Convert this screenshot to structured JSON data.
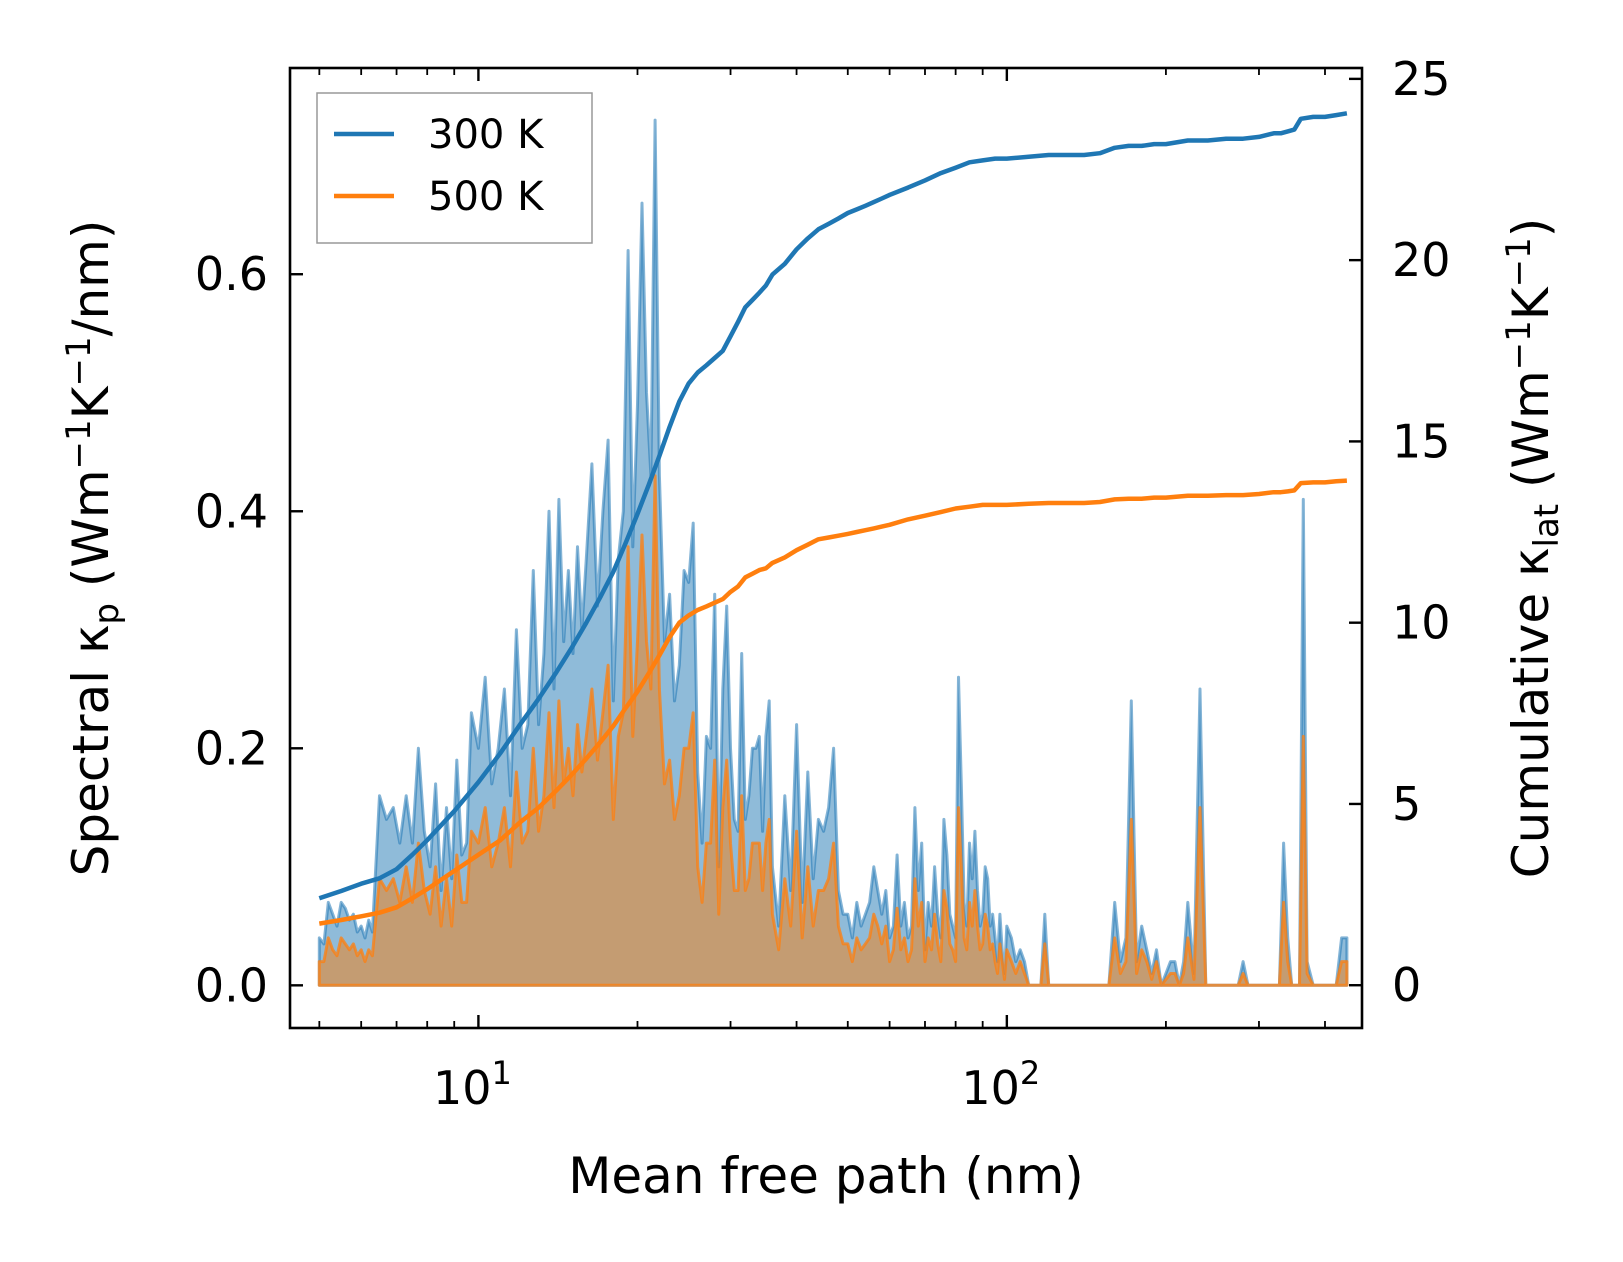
{
  "chart_data": {
    "type": "line",
    "xlabel": "Mean free path (nm)",
    "xscale": "log",
    "xlim": [
      4.4,
      470
    ],
    "x_ticks": [
      {
        "value": 10,
        "base": "10",
        "exp": "1"
      },
      {
        "value": 100,
        "base": "10",
        "exp": "2"
      }
    ],
    "ylabel_left": {
      "text": "Spectral κ",
      "sub": "p",
      "units_open": " (Wm",
      "sup1": "−1",
      "mid": "K",
      "sup2": "−1",
      "units_close": "/nm)"
    },
    "ylabel_right": {
      "text": "Cumulative κ",
      "sub": "lat",
      "units_open": " (Wm",
      "sup1": "−1",
      "mid": "K",
      "sup2": "−1",
      "units_close": ")"
    },
    "ylim_left": [
      -0.036,
      0.774
    ],
    "ylim_right": [
      -1.18,
      25.3
    ],
    "left_ticks": [
      "0.0",
      "0.2",
      "0.4",
      "0.6"
    ],
    "right_ticks": [
      "0",
      "5",
      "10",
      "15",
      "20",
      "25"
    ],
    "legend_position": "upper-left",
    "colors": {
      "300K": "#1f77b4",
      "500K": "#ff7f0e",
      "fill500": "#c49c72"
    },
    "spectral_x": [
      5,
      5.1,
      5.2,
      5.3,
      5.4,
      5.5,
      5.6,
      5.7,
      5.8,
      5.9,
      6,
      6.1,
      6.2,
      6.3,
      6.5,
      6.7,
      6.9,
      7.1,
      7.3,
      7.5,
      7.7,
      7.9,
      8.1,
      8.3,
      8.5,
      8.7,
      8.9,
      9.1,
      9.3,
      9.5,
      9.7,
      10,
      10.3,
      10.6,
      10.9,
      11.2,
      11.5,
      11.8,
      12.1,
      12.4,
      12.7,
      13,
      13.3,
      13.6,
      13.9,
      14.2,
      14.5,
      14.8,
      15.1,
      15.4,
      15.7,
      16,
      16.4,
      16.8,
      17.2,
      17.6,
      18,
      18.4,
      18.8,
      19.2,
      19.6,
      20,
      20.4,
      20.8,
      21.2,
      21.6,
      22,
      22.5,
      23,
      23.5,
      24,
      24.5,
      25,
      25.5,
      26,
      26.5,
      27,
      27.5,
      28,
      28.5,
      29,
      29.5,
      30,
      30.5,
      31,
      31.5,
      32,
      32.5,
      33,
      33.5,
      34,
      34.5,
      35,
      35.5,
      36,
      37,
      38,
      39,
      40,
      41,
      42,
      43,
      44,
      45,
      46,
      47,
      48,
      49,
      50,
      51,
      52,
      53,
      54,
      55,
      56,
      57,
      58,
      59,
      60,
      61,
      62,
      63,
      64,
      65,
      66,
      67,
      68,
      69,
      70,
      71,
      72,
      73,
      74,
      75,
      76,
      77,
      78,
      79,
      80,
      81,
      82,
      83,
      84,
      85,
      86,
      87,
      88,
      89,
      90,
      91,
      92,
      93,
      94,
      95,
      96,
      97,
      98,
      99,
      100,
      102,
      104,
      106,
      108,
      110,
      112,
      114,
      116,
      118,
      120,
      124,
      128,
      132,
      136,
      140,
      144,
      148,
      152,
      156,
      160,
      164,
      168,
      172,
      176,
      180,
      184,
      188,
      192,
      196,
      200,
      204,
      208,
      212,
      216,
      220,
      226,
      232,
      238,
      244,
      250,
      256,
      262,
      268,
      274,
      280,
      286,
      292,
      298,
      304,
      310,
      316,
      322,
      328,
      334,
      340,
      346,
      352,
      358,
      364,
      370,
      380,
      390,
      400,
      410,
      420,
      430,
      440
    ],
    "series": [
      {
        "name": "300 K",
        "spectral": [
          0.04,
          0.035,
          0.07,
          0.06,
          0.05,
          0.07,
          0.065,
          0.055,
          0.06,
          0.045,
          0.05,
          0.04,
          0.055,
          0.045,
          0.16,
          0.14,
          0.15,
          0.12,
          0.16,
          0.12,
          0.2,
          0.13,
          0.1,
          0.17,
          0.08,
          0.15,
          0.09,
          0.19,
          0.11,
          0.12,
          0.23,
          0.2,
          0.26,
          0.17,
          0.2,
          0.25,
          0.16,
          0.3,
          0.2,
          0.22,
          0.35,
          0.22,
          0.28,
          0.4,
          0.25,
          0.41,
          0.29,
          0.35,
          0.28,
          0.37,
          0.3,
          0.36,
          0.44,
          0.32,
          0.4,
          0.46,
          0.24,
          0.36,
          0.4,
          0.62,
          0.37,
          0.49,
          0.66,
          0.5,
          0.43,
          0.73,
          0.43,
          0.29,
          0.33,
          0.24,
          0.27,
          0.35,
          0.34,
          0.39,
          0.18,
          0.12,
          0.21,
          0.2,
          0.33,
          0.1,
          0.25,
          0.32,
          0.2,
          0.14,
          0.13,
          0.28,
          0.14,
          0.16,
          0.2,
          0.2,
          0.21,
          0.13,
          0.21,
          0.24,
          0.1,
          0.05,
          0.16,
          0.08,
          0.22,
          0.07,
          0.18,
          0.09,
          0.14,
          0.13,
          0.15,
          0.2,
          0.08,
          0.06,
          0.06,
          0.04,
          0.07,
          0.05,
          0.06,
          0.07,
          0.1,
          0.08,
          0.06,
          0.08,
          0.04,
          0.05,
          0.11,
          0.05,
          0.07,
          0.04,
          0.05,
          0.15,
          0.08,
          0.12,
          0.03,
          0.07,
          0.05,
          0.1,
          0.06,
          0.04,
          0.14,
          0.11,
          0.06,
          0.05,
          0.04,
          0.26,
          0.17,
          0.07,
          0.05,
          0.12,
          0.09,
          0.13,
          0.08,
          0.05,
          0.06,
          0.1,
          0.09,
          0.05,
          0.06,
          0.04,
          0.02,
          0.06,
          0.03,
          0.01,
          0.05,
          0.04,
          0.02,
          0.03,
          0.02,
          0.0,
          0.0,
          0.0,
          0.0,
          0.06,
          0.0,
          0.0,
          0.0,
          0.0,
          0.0,
          0.0,
          0.0,
          0.0,
          0.0,
          0.0,
          0.07,
          0.02,
          0.04,
          0.24,
          0.02,
          0.05,
          0.03,
          0.01,
          0.03,
          0.0,
          0.01,
          0.02,
          0.02,
          0.0,
          0.02,
          0.07,
          0.01,
          0.25,
          0.0,
          0.0,
          0.0,
          0.0,
          0.0,
          0.0,
          0.0,
          0.02,
          0.0,
          0.0,
          0.0,
          0.0,
          0.0,
          0.0,
          0.0,
          0.0,
          0.12,
          0.04,
          0.0,
          0.0,
          0.0,
          0.41,
          0.02,
          0.0,
          0.0,
          0.0,
          0.0,
          0.0,
          0.04,
          0.04
        ],
        "cumulative": {
          "x": [
            5,
            5.5,
            6,
            6.5,
            7,
            7.5,
            8,
            9,
            10,
            11,
            12,
            13,
            14,
            15,
            16,
            17,
            18,
            19,
            20,
            21,
            22,
            23,
            24,
            25,
            26,
            27,
            28,
            29,
            30,
            31,
            32,
            33,
            34,
            35,
            36,
            38,
            40,
            42,
            44,
            46,
            48,
            50,
            52,
            54,
            56,
            58,
            60,
            65,
            70,
            75,
            80,
            85,
            90,
            95,
            100,
            110,
            120,
            130,
            140,
            150,
            160,
            170,
            180,
            190,
            200,
            220,
            240,
            260,
            280,
            300,
            320,
            330,
            340,
            350,
            360,
            380,
            400,
            420,
            440
          ],
          "y": [
            2.4,
            2.6,
            2.8,
            2.95,
            3.2,
            3.6,
            4.0,
            4.8,
            5.6,
            6.4,
            7.2,
            7.9,
            8.6,
            9.3,
            10.0,
            10.7,
            11.4,
            12.2,
            13.0,
            13.8,
            14.6,
            15.4,
            16.1,
            16.6,
            16.9,
            17.1,
            17.3,
            17.5,
            17.9,
            18.3,
            18.7,
            18.9,
            19.1,
            19.3,
            19.6,
            19.9,
            20.3,
            20.6,
            20.85,
            21.0,
            21.15,
            21.3,
            21.4,
            21.5,
            21.6,
            21.7,
            21.8,
            22.0,
            22.2,
            22.4,
            22.55,
            22.7,
            22.75,
            22.8,
            22.8,
            22.85,
            22.9,
            22.9,
            22.9,
            22.95,
            23.1,
            23.15,
            23.15,
            23.2,
            23.2,
            23.3,
            23.3,
            23.35,
            23.35,
            23.4,
            23.5,
            23.5,
            23.55,
            23.6,
            23.9,
            23.95,
            23.95,
            24.0,
            24.05
          ]
        }
      },
      {
        "name": "500 K",
        "spectral": [
          0.02,
          0.02,
          0.04,
          0.03,
          0.025,
          0.04,
          0.035,
          0.03,
          0.035,
          0.025,
          0.03,
          0.02,
          0.03,
          0.025,
          0.09,
          0.08,
          0.09,
          0.07,
          0.1,
          0.07,
          0.12,
          0.08,
          0.06,
          0.1,
          0.05,
          0.09,
          0.05,
          0.11,
          0.07,
          0.07,
          0.13,
          0.12,
          0.15,
          0.1,
          0.12,
          0.15,
          0.1,
          0.18,
          0.12,
          0.13,
          0.2,
          0.13,
          0.16,
          0.23,
          0.15,
          0.24,
          0.17,
          0.2,
          0.16,
          0.22,
          0.18,
          0.21,
          0.25,
          0.19,
          0.23,
          0.27,
          0.14,
          0.21,
          0.23,
          0.37,
          0.21,
          0.29,
          0.38,
          0.29,
          0.25,
          0.43,
          0.25,
          0.17,
          0.19,
          0.14,
          0.16,
          0.2,
          0.2,
          0.23,
          0.1,
          0.07,
          0.12,
          0.12,
          0.19,
          0.06,
          0.15,
          0.19,
          0.12,
          0.08,
          0.08,
          0.16,
          0.08,
          0.09,
          0.12,
          0.12,
          0.12,
          0.08,
          0.12,
          0.14,
          0.06,
          0.03,
          0.09,
          0.05,
          0.13,
          0.04,
          0.1,
          0.05,
          0.08,
          0.08,
          0.09,
          0.12,
          0.05,
          0.035,
          0.035,
          0.02,
          0.04,
          0.03,
          0.035,
          0.04,
          0.06,
          0.05,
          0.035,
          0.05,
          0.02,
          0.03,
          0.065,
          0.03,
          0.04,
          0.02,
          0.03,
          0.09,
          0.05,
          0.07,
          0.02,
          0.04,
          0.03,
          0.06,
          0.035,
          0.02,
          0.08,
          0.065,
          0.035,
          0.03,
          0.02,
          0.15,
          0.1,
          0.04,
          0.03,
          0.07,
          0.05,
          0.08,
          0.05,
          0.03,
          0.035,
          0.06,
          0.05,
          0.03,
          0.035,
          0.02,
          0.01,
          0.035,
          0.02,
          0.005,
          0.03,
          0.02,
          0.01,
          0.02,
          0.01,
          0.0,
          0.0,
          0.0,
          0.0,
          0.035,
          0.0,
          0.0,
          0.0,
          0.0,
          0.0,
          0.0,
          0.0,
          0.0,
          0.0,
          0.0,
          0.04,
          0.01,
          0.02,
          0.14,
          0.01,
          0.03,
          0.02,
          0.005,
          0.02,
          0.0,
          0.005,
          0.01,
          0.01,
          0.0,
          0.01,
          0.04,
          0.005,
          0.15,
          0.0,
          0.0,
          0.0,
          0.0,
          0.0,
          0.0,
          0.0,
          0.01,
          0.0,
          0.0,
          0.0,
          0.0,
          0.0,
          0.0,
          0.0,
          0.0,
          0.07,
          0.02,
          0.0,
          0.0,
          0.0,
          0.21,
          0.01,
          0.0,
          0.0,
          0.0,
          0.0,
          0.0,
          0.02,
          0.02
        ],
        "cumulative": {
          "x": [
            5,
            5.5,
            6,
            6.5,
            7,
            7.5,
            8,
            9,
            10,
            11,
            12,
            13,
            14,
            15,
            16,
            17,
            18,
            19,
            20,
            21,
            22,
            23,
            24,
            25,
            26,
            27,
            28,
            29,
            30,
            31,
            32,
            33,
            34,
            35,
            36,
            38,
            40,
            42,
            44,
            46,
            48,
            50,
            52,
            54,
            56,
            58,
            60,
            65,
            70,
            75,
            80,
            85,
            90,
            95,
            100,
            110,
            120,
            130,
            140,
            150,
            160,
            170,
            180,
            190,
            200,
            220,
            240,
            260,
            280,
            300,
            320,
            330,
            340,
            350,
            360,
            380,
            400,
            420,
            440
          ],
          "y": [
            1.7,
            1.8,
            1.9,
            2.0,
            2.15,
            2.4,
            2.65,
            3.15,
            3.6,
            4.0,
            4.5,
            4.9,
            5.35,
            5.8,
            6.25,
            6.7,
            7.15,
            7.65,
            8.1,
            8.6,
            9.1,
            9.6,
            10.0,
            10.2,
            10.35,
            10.45,
            10.55,
            10.65,
            10.85,
            11.0,
            11.25,
            11.35,
            11.45,
            11.5,
            11.65,
            11.8,
            12.0,
            12.15,
            12.3,
            12.35,
            12.4,
            12.45,
            12.5,
            12.55,
            12.6,
            12.65,
            12.7,
            12.85,
            12.95,
            13.05,
            13.15,
            13.2,
            13.25,
            13.25,
            13.25,
            13.28,
            13.3,
            13.3,
            13.3,
            13.33,
            13.4,
            13.42,
            13.42,
            13.45,
            13.45,
            13.5,
            13.5,
            13.52,
            13.52,
            13.55,
            13.6,
            13.6,
            13.62,
            13.65,
            13.85,
            13.87,
            13.87,
            13.9,
            13.92
          ]
        }
      }
    ]
  }
}
